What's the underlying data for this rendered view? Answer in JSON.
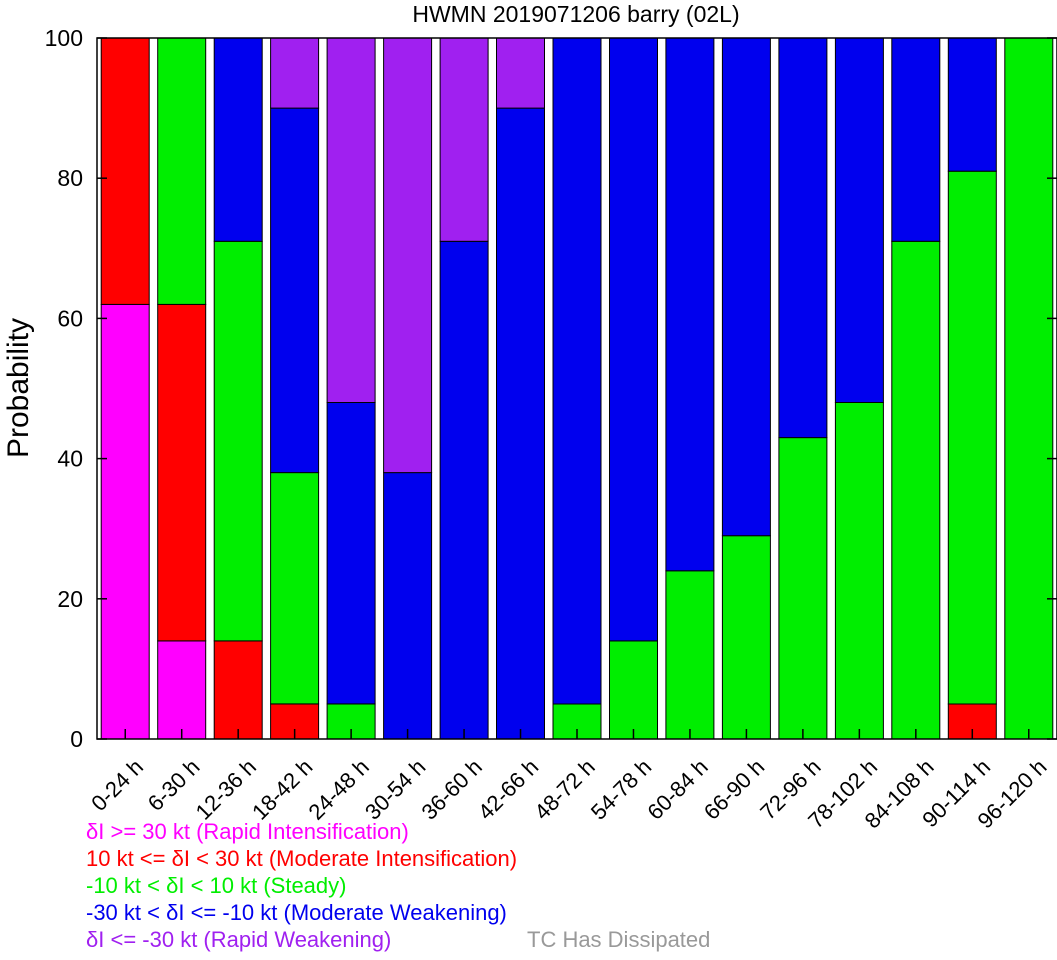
{
  "chart_data": {
    "type": "bar",
    "stacked": true,
    "title": "HWMN 2019071206 barry (02L)",
    "ylabel": "Probability",
    "xlabel": "",
    "ylim": [
      0,
      100
    ],
    "yticks": [
      0,
      20,
      40,
      60,
      80,
      100
    ],
    "categories": [
      "0-24 h",
      "6-30 h",
      "12-36 h",
      "18-42 h",
      "24-48 h",
      "30-54 h",
      "36-60 h",
      "42-66 h",
      "48-72 h",
      "54-78 h",
      "60-84 h",
      "66-90 h",
      "72-96 h",
      "78-102 h",
      "84-108 h",
      "90-114 h",
      "96-120 h"
    ],
    "series": [
      {
        "name": "δI >= 30 kt (Rapid Intensification)",
        "color": "#ff00ff",
        "values": [
          62,
          14,
          0,
          0,
          0,
          0,
          0,
          0,
          0,
          0,
          0,
          0,
          0,
          0,
          0,
          0,
          0
        ]
      },
      {
        "name": "10 kt <= δI < 30 kt (Moderate Intensification)",
        "color": "#ff0000",
        "values": [
          38,
          48,
          14,
          5,
          0,
          0,
          0,
          0,
          0,
          0,
          0,
          0,
          0,
          0,
          0,
          5,
          0
        ]
      },
      {
        "name": "-10 kt < δI < 10 kt (Steady)",
        "color": "#00ee00",
        "values": [
          0,
          38,
          57,
          33,
          5,
          0,
          0,
          0,
          5,
          14,
          24,
          29,
          43,
          48,
          71,
          76,
          100
        ]
      },
      {
        "name": "-30 kt < δI <= -10 kt (Moderate Weakening)",
        "color": "#0000ee",
        "values": [
          0,
          0,
          29,
          52,
          43,
          38,
          71,
          90,
          95,
          86,
          76,
          71,
          57,
          52,
          29,
          19,
          0
        ]
      },
      {
        "name": "δI <= -30 kt (Rapid Weakening)",
        "color": "#a020f0",
        "values": [
          0,
          0,
          0,
          10,
          52,
          62,
          29,
          10,
          0,
          0,
          0,
          0,
          0,
          0,
          0,
          0,
          0
        ]
      }
    ],
    "legend": {
      "placement": "bottom-left",
      "dissipated_label": "TC Has Dissipated",
      "dissipated_color": "#999999"
    },
    "grid": false
  }
}
